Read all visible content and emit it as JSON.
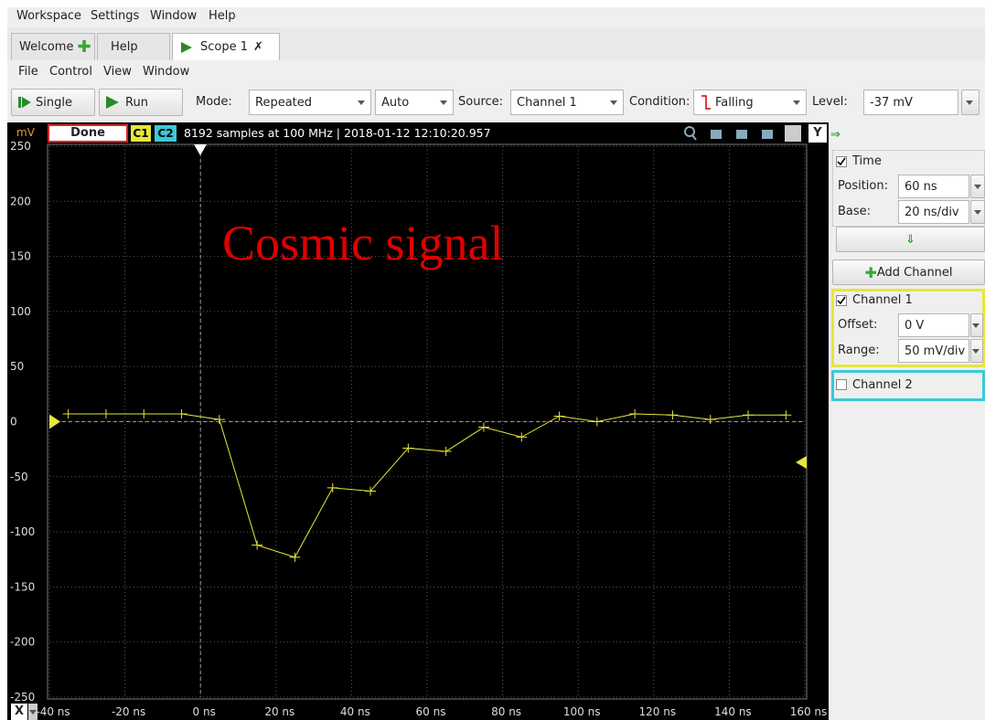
{
  "menubar": [
    "Workspace",
    "Settings",
    "Window",
    "Help"
  ],
  "tabs": [
    "Welcome",
    "Help",
    "Scope 1"
  ],
  "submenu": [
    "File",
    "Control",
    "View",
    "Window"
  ],
  "toolbar": {
    "single": "Single",
    "run": "Run",
    "mode_label": "Mode:",
    "mode": "Repeated",
    "auto": "Auto",
    "source_label": "Source:",
    "source": "Channel 1",
    "condition_label": "Condition:",
    "condition": "Falling",
    "level_label": "Level:",
    "level": "-37 mV"
  },
  "status": {
    "unit": "mV",
    "state": "Done",
    "c1": "C1",
    "c2": "C2",
    "info": "8192 samples at 100 MHz | 2018-01-12 12:10:20.957",
    "y_button": "Y"
  },
  "panel": {
    "time": "Time",
    "position_label": "Position:",
    "position": "60 ns",
    "base_label": "Base:",
    "base": "20 ns/div",
    "add_channel": "Add Channel",
    "channel1": "Channel 1",
    "offset_label": "Offset:",
    "offset": "0 V",
    "range_label": "Range:",
    "range": "50 mV/div",
    "channel2": "Channel 2"
  },
  "x_button": "X",
  "chart_data": {
    "type": "line",
    "annotation": "Cosmic signal",
    "color": "#e6e63c",
    "x": [
      -35,
      -25,
      -15,
      -5,
      5,
      15,
      25,
      35,
      45,
      55,
      65,
      75,
      85,
      95,
      105,
      115,
      125,
      135,
      145,
      155
    ],
    "values": [
      7,
      7,
      7,
      7,
      2,
      -112,
      -123,
      -60,
      -63,
      -24,
      -27,
      -5,
      -14,
      5,
      0,
      7,
      6,
      2,
      6,
      6
    ],
    "xlim": [
      -40,
      160
    ],
    "xticks": [
      {
        "value": -40,
        "label": "-40 ns"
      },
      {
        "value": -20,
        "label": "-20 ns"
      },
      {
        "value": 0,
        "label": "0 ns"
      },
      {
        "value": 20,
        "label": "20 ns"
      },
      {
        "value": 40,
        "label": "40 ns"
      },
      {
        "value": 60,
        "label": "60 ns"
      },
      {
        "value": 80,
        "label": "80 ns"
      },
      {
        "value": 100,
        "label": "100 ns"
      },
      {
        "value": 120,
        "label": "120 ns"
      },
      {
        "value": 140,
        "label": "140 ns"
      },
      {
        "value": 160,
        "label": "160 ns"
      }
    ],
    "ylim": [
      -250,
      250
    ],
    "yticks": [
      -250,
      -200,
      -150,
      -100,
      -50,
      0,
      50,
      100,
      150,
      200,
      250
    ],
    "grid": true
  }
}
